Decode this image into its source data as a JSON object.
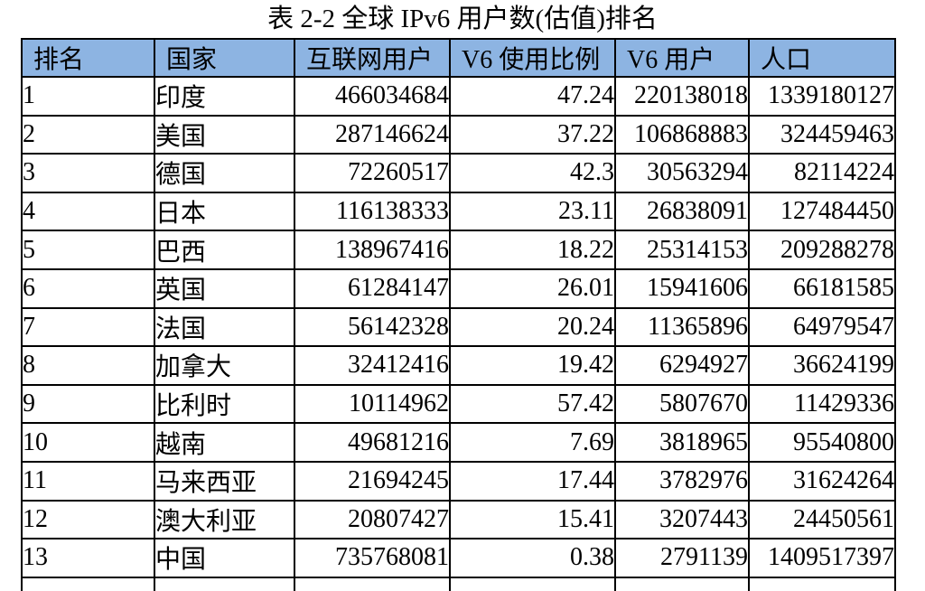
{
  "page": {
    "title": "表 2-2  全球 IPv6 用户数(估值)排名"
  },
  "table": {
    "header_bg": "#8DB4E2",
    "border_color": "#000000",
    "columns": [
      "排名",
      "国家",
      "互联网用户",
      "V6 使用比例",
      "V6 用户",
      "人口"
    ],
    "rows": [
      [
        "1",
        "印度",
        "466034684",
        "47.24",
        "220138018",
        "1339180127"
      ],
      [
        "2",
        "美国",
        "287146624",
        "37.22",
        "106868883",
        "324459463"
      ],
      [
        "3",
        "德国",
        "72260517",
        "42.3",
        "30563294",
        "82114224"
      ],
      [
        "4",
        "日本",
        "116138333",
        "23.11",
        "26838091",
        "127484450"
      ],
      [
        "5",
        "巴西",
        "138967416",
        "18.22",
        "25314153",
        "209288278"
      ],
      [
        "6",
        "英国",
        "61284147",
        "26.01",
        "15941606",
        "66181585"
      ],
      [
        "7",
        "法国",
        "56142328",
        "20.24",
        "11365896",
        "64979547"
      ],
      [
        "8",
        "加拿大",
        "32412416",
        "19.42",
        "6294927",
        "36624199"
      ],
      [
        "9",
        "比利时",
        "10114962",
        "57.42",
        "5807670",
        "11429336"
      ],
      [
        "10",
        "越南",
        "49681216",
        "7.69",
        "3818965",
        "95540800"
      ],
      [
        "11",
        "马来西亚",
        "21694245",
        "17.44",
        "3782976",
        "31624264"
      ],
      [
        "12",
        "澳大利亚",
        "20807427",
        "15.41",
        "3207443",
        "24450561"
      ],
      [
        "13",
        "中国",
        "735768081",
        "0.38",
        "2791139",
        "1409517397"
      ]
    ]
  }
}
